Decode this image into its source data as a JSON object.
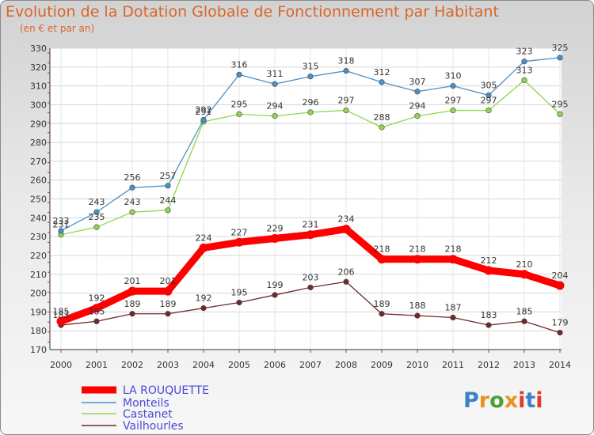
{
  "title": "Evolution de la Dotation Globale de Fonctionnement par Habitant",
  "subtitle": "(en € et par an)",
  "logo": {
    "text": "Proxiti",
    "colors": [
      "#3a83c6",
      "#e8931e",
      "#4aa23c",
      "#e8931e",
      "#e2392a",
      "#3a83c6",
      "#e2392a"
    ]
  },
  "chart_data": {
    "type": "line",
    "x": [
      "2000",
      "2001",
      "2002",
      "2003",
      "2004",
      "2005",
      "2006",
      "2007",
      "2008",
      "2009",
      "2010",
      "2011",
      "2012",
      "2013",
      "2014"
    ],
    "ylim": [
      170,
      330
    ],
    "yticks": [
      170,
      180,
      190,
      200,
      210,
      220,
      230,
      240,
      250,
      260,
      270,
      280,
      290,
      300,
      310,
      320,
      330
    ],
    "grid": true,
    "legend_position": "bottom-left",
    "series": [
      {
        "name": "LA ROUQUETTE",
        "color": "#ff0000",
        "values": [
          185,
          192,
          201,
          201,
          224,
          227,
          229,
          231,
          234,
          218,
          218,
          218,
          212,
          210,
          204
        ]
      },
      {
        "name": "Monteils",
        "color": "#4a90c8",
        "values": [
          233,
          243,
          256,
          257,
          292,
          316,
          311,
          315,
          318,
          312,
          307,
          310,
          305,
          323,
          325
        ]
      },
      {
        "name": "Castanet",
        "color": "#8fd650",
        "values": [
          231,
          235,
          243,
          244,
          291,
          295,
          294,
          296,
          297,
          288,
          294,
          297,
          297,
          313,
          295
        ]
      },
      {
        "name": "Vailhourles",
        "color": "#6e2a2a",
        "values": [
          183,
          185,
          189,
          189,
          192,
          195,
          199,
          203,
          206,
          189,
          188,
          187,
          183,
          185,
          179
        ]
      }
    ]
  }
}
